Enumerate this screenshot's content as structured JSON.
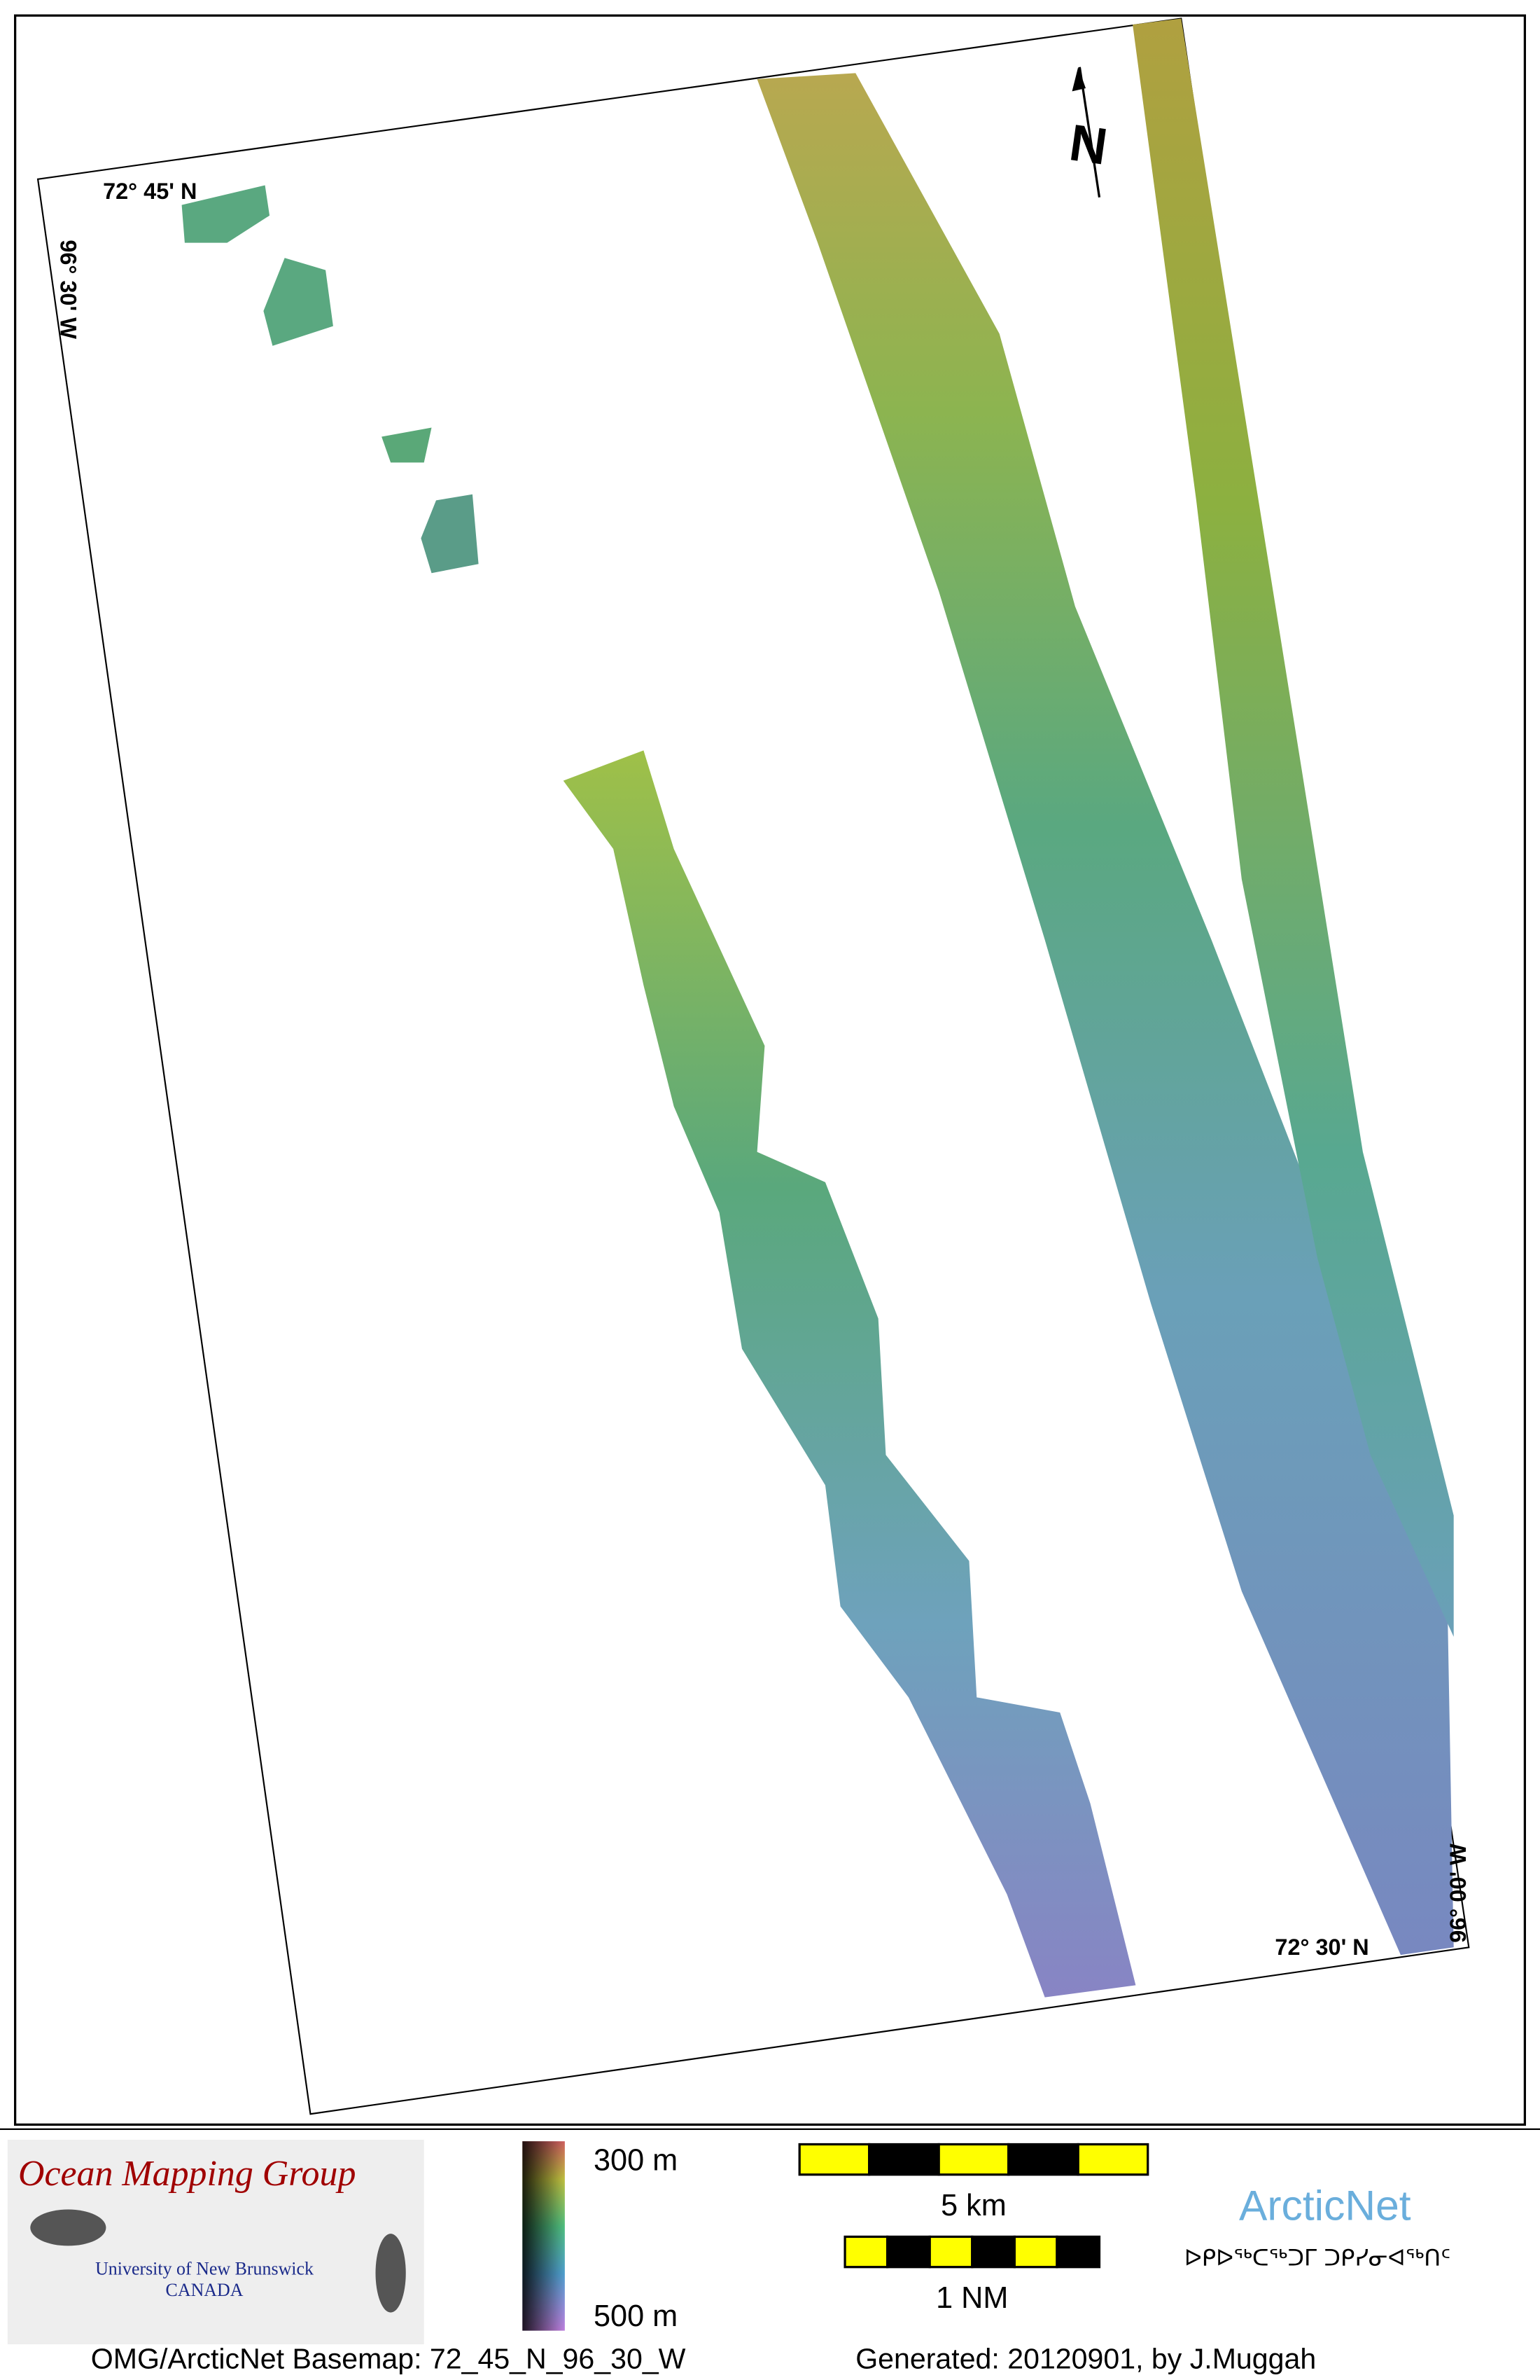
{
  "map": {
    "graticule": {
      "top_left_lat": "72° 45' N",
      "left_lon": "96° 30' W",
      "bottom_right_lat": "72° 30' N",
      "right_lon": "96° 00' W"
    },
    "north_arrow": "N"
  },
  "legend": {
    "logo": {
      "title": "Ocean Mapping Group",
      "university": "University of New Brunswick",
      "country": "CANADA"
    },
    "depth_scale": {
      "top": "300 m",
      "bottom": "500 m"
    },
    "scale_bars": {
      "km": "5 km",
      "nm": "1 NM"
    },
    "arcticnet": {
      "name": "ArcticNet",
      "syllabics": "ᐅᑭᐅᖅᑕᖅᑐᒥ ᑐᑭᓯᓂᐊᖅᑎᑦ"
    }
  },
  "footer": {
    "basemap": "OMG/ArcticNet Basemap: 72_45_N_96_30_W",
    "generated": "Generated: 20120901, by J.Muggah"
  }
}
